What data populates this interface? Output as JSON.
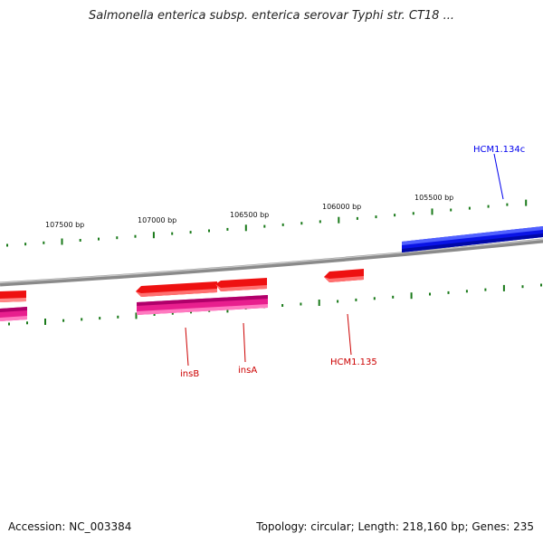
{
  "title": "Salmonella enterica subsp. enterica serovar Typhi str. CT18 ...",
  "accession_text": "Accession: NC_003384",
  "topology_text": "Topology: circular; Length: 218,160 bp; Genes: 235",
  "ticks": [
    {
      "label": "107500 bp"
    },
    {
      "label": "107000 bp"
    },
    {
      "label": "106500 bp"
    },
    {
      "label": "106000 bp"
    },
    {
      "label": "105500 bp"
    }
  ],
  "genes": [
    {
      "label": "HCM1.134c",
      "color": "#0000ee"
    },
    {
      "label": "insB",
      "color": "#cc0000"
    },
    {
      "label": "insA",
      "color": "#cc0000"
    },
    {
      "label": "HCM1.135",
      "color": "#cc0000"
    }
  ],
  "colors": {
    "forward_gene": "#0a14e6",
    "reverse_gene": "#ee1111",
    "pseudo_gene": "#e81f8e",
    "backbone": "#8a8a8a",
    "ticks": "#1a7a1a"
  }
}
